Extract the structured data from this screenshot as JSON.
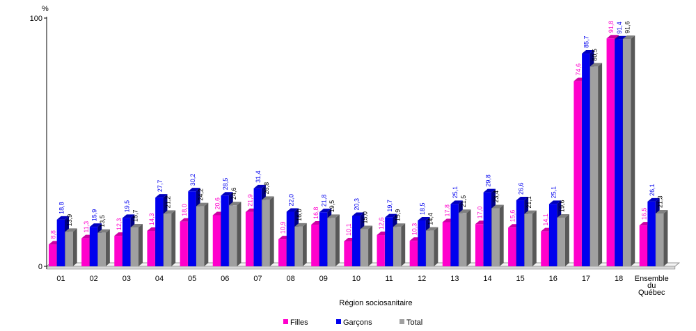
{
  "chart_data": {
    "type": "bar",
    "unit_label": "%",
    "xlabel": "Région sociosanitaire",
    "ylim": [
      0,
      100
    ],
    "yticks": [
      0,
      100
    ],
    "categories": [
      "01",
      "02",
      "03",
      "04",
      "05",
      "06",
      "07",
      "08",
      "09",
      "10",
      "11",
      "12",
      "13",
      "14",
      "15",
      "16",
      "17",
      "18",
      "Ensemble du Québec"
    ],
    "series": [
      {
        "name": "Filles",
        "color": "#ff00cc",
        "label_color": "#ff00cc",
        "values": [
          8.8,
          11.3,
          12.3,
          14.3,
          18.0,
          20.6,
          21.9,
          10.9,
          16.8,
          10.1,
          12.6,
          10.3,
          17.8,
          17.0,
          15.6,
          14.1,
          74.6,
          91.8,
          16.5
        ],
        "labels": [
          "8,8",
          "11,3",
          "12,3",
          "14,3",
          "18,0",
          "20,6",
          "21,9",
          "10,9",
          "16,8",
          "10,1",
          "12,6",
          "10,3",
          "17,8",
          "17,0",
          "15,6",
          "14,1",
          "74,6",
          "91,8",
          "16,5"
        ]
      },
      {
        "name": "Garçons",
        "color": "#0000ee",
        "label_color": "#0000ee",
        "values": [
          18.8,
          15.9,
          19.5,
          27.7,
          30.2,
          28.5,
          31.4,
          22.0,
          21.8,
          20.3,
          19.7,
          18.5,
          25.1,
          29.8,
          26.6,
          25.1,
          85.7,
          91.4,
          26.1
        ],
        "labels": [
          "18,8",
          "15,9",
          "19,5",
          "27,7",
          "30,2",
          "28,5",
          "31,4",
          "22,0",
          "21,8",
          "20,3",
          "19,7",
          "18,5",
          "25,1",
          "29,8",
          "26,6",
          "25,1",
          "85,7",
          "91,4",
          "26,1"
        ]
      },
      {
        "name": "Total",
        "color": "#a0a0a0",
        "label_color": "#000000",
        "values": [
          13.9,
          13.5,
          15.7,
          21.2,
          24.2,
          24.6,
          26.8,
          16.0,
          19.5,
          15.0,
          15.9,
          14.4,
          21.5,
          23.4,
          21.1,
          19.6,
          80.5,
          91.6,
          21.3
        ],
        "labels": [
          "13,9",
          "13,5",
          "15,7",
          "21,2",
          "24,2",
          "24,6",
          "26,8",
          "16,0",
          "19,5",
          "15,0",
          "15,9",
          "14,4",
          "21,5",
          "23,4",
          "21,1",
          "19,6",
          "80,5",
          "91,6",
          "21,3"
        ]
      }
    ],
    "legend_position": "bottom-center",
    "grid": false
  }
}
